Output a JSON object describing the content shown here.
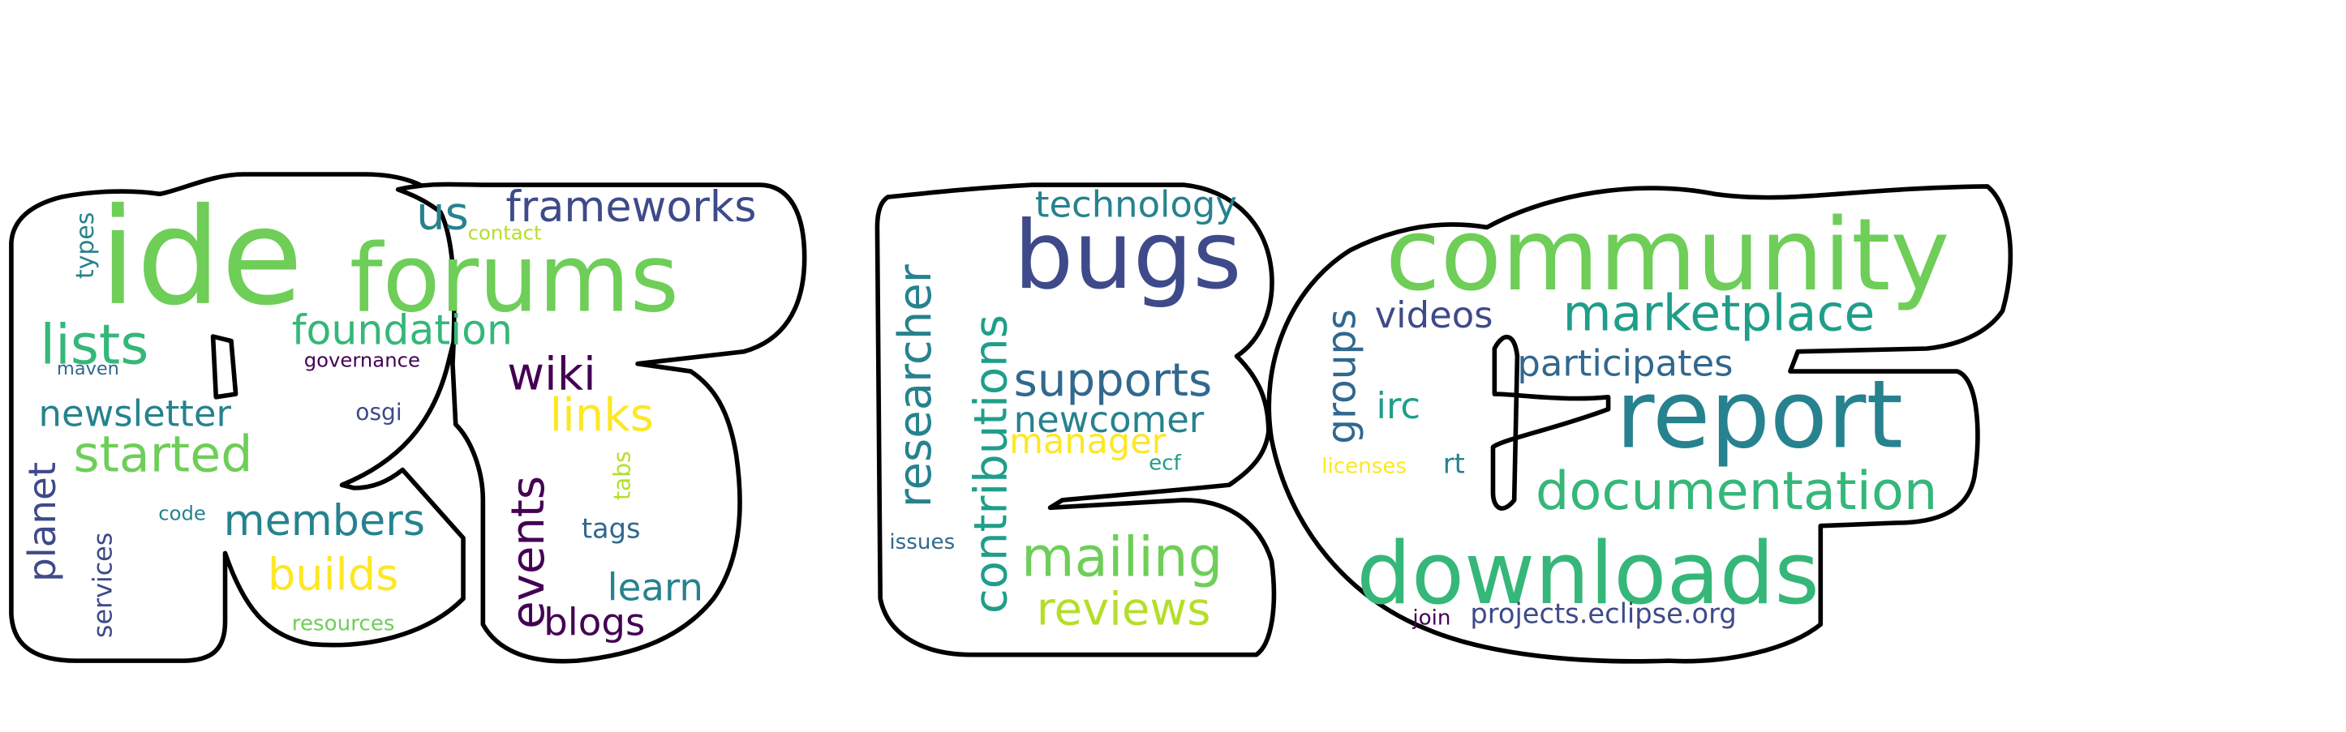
{
  "colors": {
    "dark_purple": "#440154",
    "indigo": "#3e4a89",
    "slate_blue": "#31688e",
    "teal_blue": "#26828e",
    "teal": "#1f9e89",
    "sea_green": "#35b779",
    "green": "#6ece58",
    "light_green": "#b5de2b",
    "yellow": "#fde725",
    "outline": "#000000",
    "background": "#ffffff"
  },
  "words": {
    "ide": "ide",
    "forums": "forums",
    "frameworks": "frameworks",
    "us": "us",
    "contact": "contact",
    "types": "types",
    "lists": "lists",
    "foundation": "foundation",
    "maven": "maven",
    "governance": "governance",
    "wiki": "wiki",
    "newsletter": "newsletter",
    "osgi": "osgi",
    "links": "links",
    "started": "started",
    "planet": "planet",
    "tabs": "tabs",
    "events": "events",
    "code": "code",
    "members": "members",
    "tags": "tags",
    "services": "services",
    "builds": "builds",
    "learn": "learn",
    "resources": "resources",
    "blogs": "blogs",
    "technology": "technology",
    "bugs": "bugs",
    "researcher": "researcher",
    "contributions": "contributions",
    "supports": "supports",
    "newcomer": "newcomer",
    "manager": "manager",
    "ecf": "ecf",
    "issues": "issues",
    "mailing": "mailing",
    "reviews": "reviews",
    "community": "community",
    "marketplace": "marketplace",
    "videos": "videos",
    "groups": "groups",
    "participates": "participates",
    "irc": "irc",
    "report": "report",
    "licenses": "licenses",
    "rt": "rt",
    "documentation": "documentation",
    "downloads": "downloads",
    "join": "join",
    "projects": "projects.eclipse.org"
  }
}
